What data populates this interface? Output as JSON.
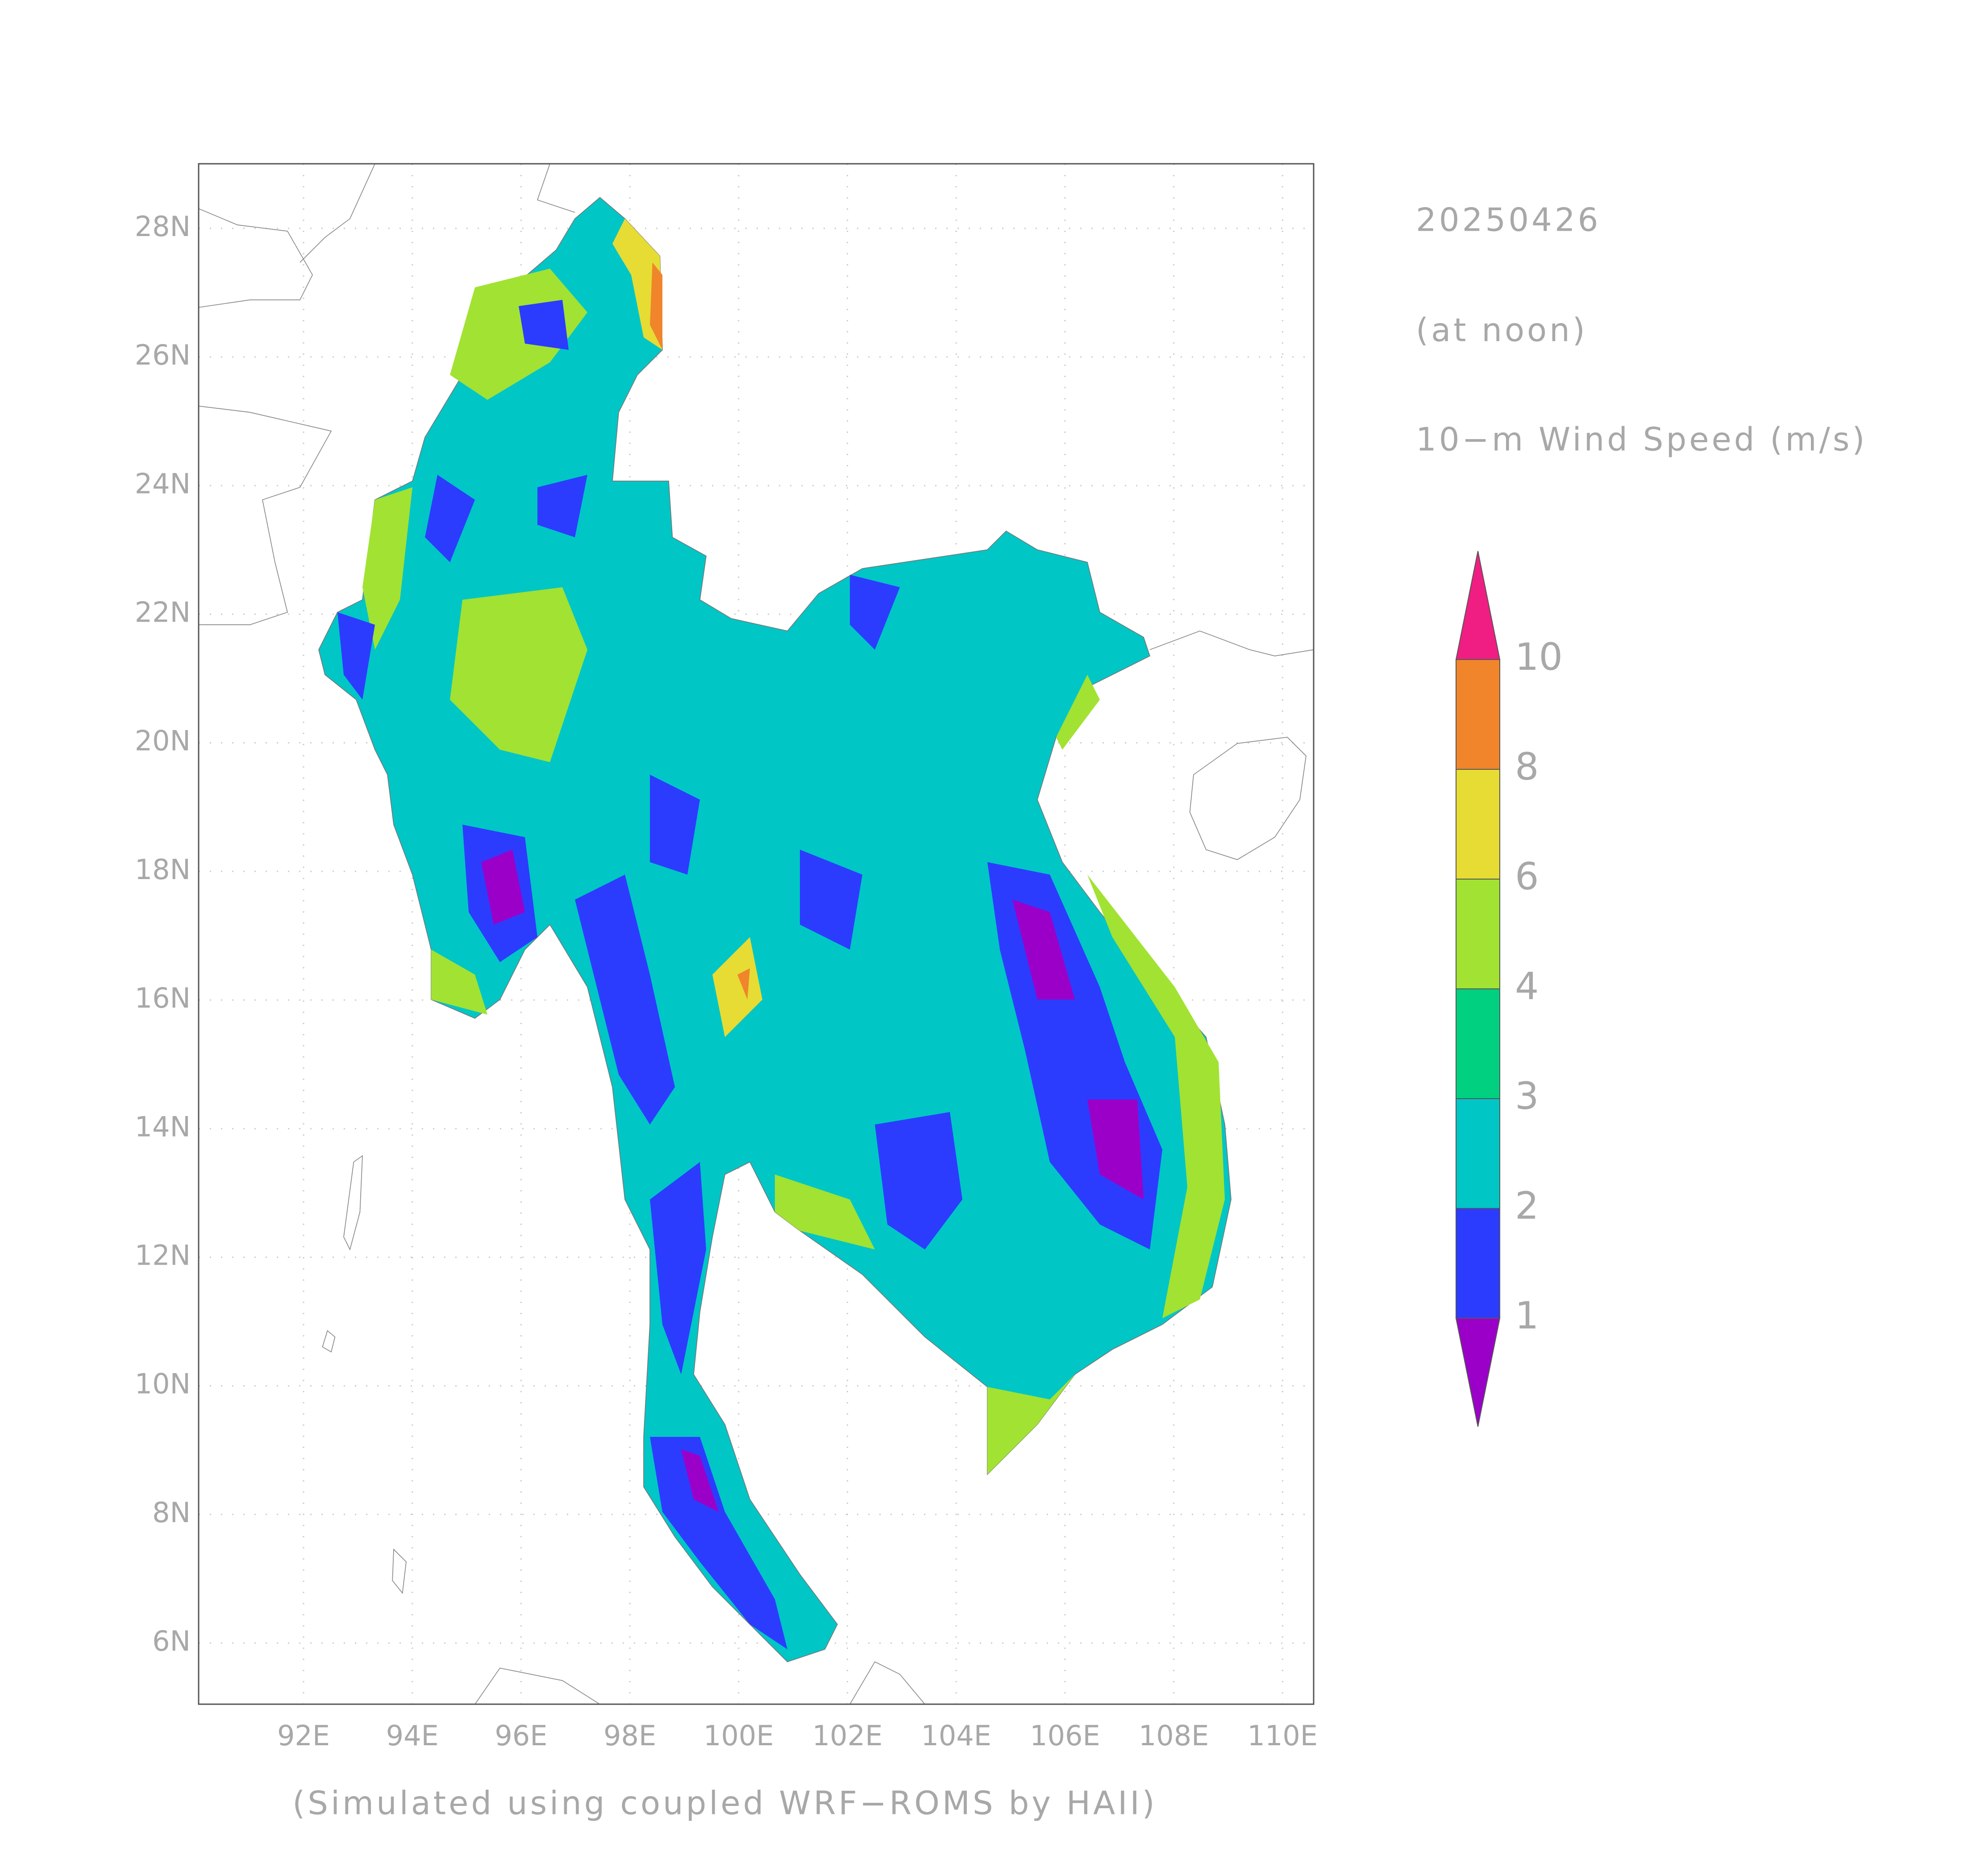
{
  "header": {
    "date": "20250426",
    "time": "(at noon)",
    "variable": "10−m Wind Speed (m/s)"
  },
  "footer": "(Simulated using coupled WRF−ROMS by HAII)",
  "map": {
    "lat_labels": [
      "6N",
      "8N",
      "10N",
      "12N",
      "14N",
      "16N",
      "18N",
      "20N",
      "22N",
      "24N",
      "26N",
      "28N"
    ],
    "lon_labels": [
      "92E",
      "94E",
      "96E",
      "98E",
      "100E",
      "102E",
      "104E",
      "106E",
      "108E",
      "110E"
    ]
  },
  "colorbar": {
    "levels": [
      1,
      2,
      3,
      4,
      6,
      8,
      10
    ],
    "colors": [
      "#9b00c9",
      "#2b3cff",
      "#00c6c6",
      "#00d080",
      "#a2e232",
      "#e6dc34",
      "#f0852c",
      "#f01e82"
    ]
  }
}
